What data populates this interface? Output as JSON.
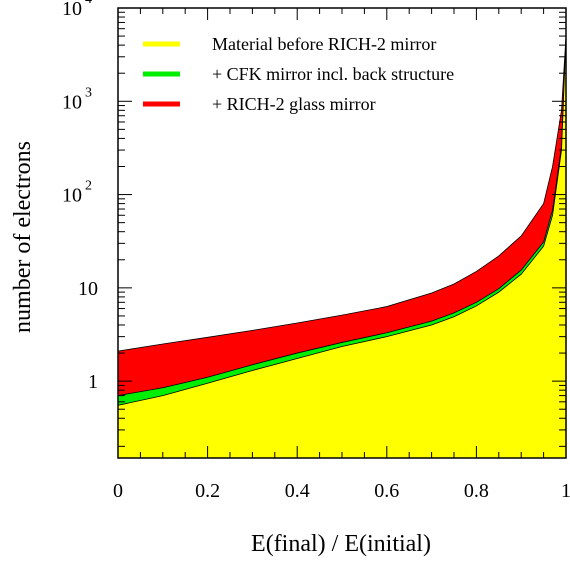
{
  "chart_data": {
    "type": "area",
    "stacked": true,
    "title": "",
    "xlabel": "E(final) / E(initial)",
    "ylabel": "number of electrons",
    "xlim": [
      0,
      1
    ],
    "ylim": [
      0.15,
      10000
    ],
    "yscale": "log",
    "grid": false,
    "legend_position": "top-right",
    "x_ticks": [
      {
        "value": 0,
        "label": "0"
      },
      {
        "value": 0.2,
        "label": "0.2"
      },
      {
        "value": 0.4,
        "label": "0.4"
      },
      {
        "value": 0.6,
        "label": "0.6"
      },
      {
        "value": 0.8,
        "label": "0.8"
      },
      {
        "value": 1,
        "label": "1"
      }
    ],
    "y_ticks": [
      {
        "value": 1,
        "base": "1",
        "exp": ""
      },
      {
        "value": 10,
        "base": "10",
        "exp": ""
      },
      {
        "value": 100,
        "base": "10",
        "exp": "2"
      },
      {
        "value": 1000,
        "base": "10",
        "exp": "3"
      },
      {
        "value": 10000,
        "base": "10",
        "exp": "4"
      }
    ],
    "x": [
      0,
      0.1,
      0.2,
      0.3,
      0.4,
      0.5,
      0.6,
      0.7,
      0.75,
      0.8,
      0.85,
      0.9,
      0.95,
      0.97,
      0.99,
      1.0
    ],
    "series": [
      {
        "name": "Material before RICH-2 mirror",
        "color": "#ffff00",
        "values": [
          0.55,
          0.7,
          0.95,
          1.3,
          1.75,
          2.35,
          3.0,
          4.0,
          4.9,
          6.4,
          9.0,
          14.0,
          28.0,
          60.0,
          300.0,
          5000.0
        ]
      },
      {
        "name": "+ CFK mirror incl. back structure",
        "color": "#00ee00",
        "values": [
          0.7,
          0.85,
          1.1,
          1.5,
          2.0,
          2.6,
          3.3,
          4.4,
          5.4,
          7.0,
          9.8,
          15.5,
          31.0,
          68.0,
          330.0,
          5000.0
        ]
      },
      {
        "name": "+ RICH-2 glass mirror",
        "color": "#ff0000",
        "values": [
          2.1,
          2.5,
          2.95,
          3.5,
          4.2,
          5.1,
          6.3,
          8.8,
          11.0,
          15.0,
          22.0,
          36.0,
          80.0,
          200.0,
          800.0,
          5000.0
        ]
      }
    ]
  }
}
